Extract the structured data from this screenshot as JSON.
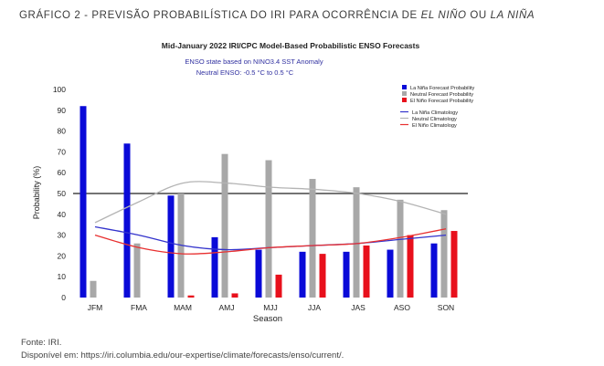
{
  "caption": {
    "prefix": "GRÁFICO 2 - PREVISÃO PROBABILÍSTICA DO IRI PARA OCORRÊNCIA DE ",
    "term1": "EL NIÑO",
    "middle": " OU ",
    "term2": "LA NIÑA"
  },
  "source": {
    "line1": "Fonte: IRI.",
    "line2": "Disponível em: https://iri.columbia.edu/our-expertise/climate/forecasts/enso/current/."
  },
  "chart_data": {
    "type": "bar",
    "title": "Mid-January 2022 IRI/CPC Model-Based Probabilistic ENSO Forecasts",
    "subtitle1": "ENSO state based on NINO3.4 SST Anomaly",
    "subtitle2": "Neutral ENSO: -0.5 °C to 0.5 °C",
    "xlabel": "Season",
    "ylabel": "Probability (%)",
    "ylim": [
      0,
      100
    ],
    "yticks": [
      0,
      10,
      20,
      30,
      40,
      50,
      60,
      70,
      80,
      90,
      100
    ],
    "reference_line": 50,
    "categories": [
      "JFM",
      "FMA",
      "MAM",
      "AMJ",
      "MJJ",
      "JJA",
      "JAS",
      "ASO",
      "SON"
    ],
    "series": [
      {
        "name": "La Niña Forecast Probability",
        "color": "#0a0ad8",
        "values": [
          92,
          74,
          49,
          29,
          23,
          22,
          22,
          23,
          26
        ]
      },
      {
        "name": "Neutral Forecast Probability",
        "color": "#a8a8a8",
        "values": [
          8,
          26,
          50,
          69,
          66,
          57,
          53,
          47,
          42
        ]
      },
      {
        "name": "El Niño Forecast Probability",
        "color": "#e8101c",
        "values": [
          0,
          0,
          1,
          2,
          11,
          21,
          25,
          30,
          32
        ]
      }
    ],
    "lines": [
      {
        "name": "La Niña Climatology",
        "color": "#3333cc",
        "values": [
          34,
          30,
          25,
          23,
          24,
          25,
          26,
          28,
          30
        ]
      },
      {
        "name": "Neutral Climatology",
        "color": "#b4b4b4",
        "values": [
          36,
          46,
          55,
          55,
          53,
          52,
          50,
          46,
          40
        ]
      },
      {
        "name": "El Niño Climatology",
        "color": "#e83030",
        "values": [
          30,
          24,
          21,
          22,
          24,
          25,
          26,
          29,
          33
        ]
      }
    ],
    "legend_position": "top-right",
    "grid": false
  }
}
